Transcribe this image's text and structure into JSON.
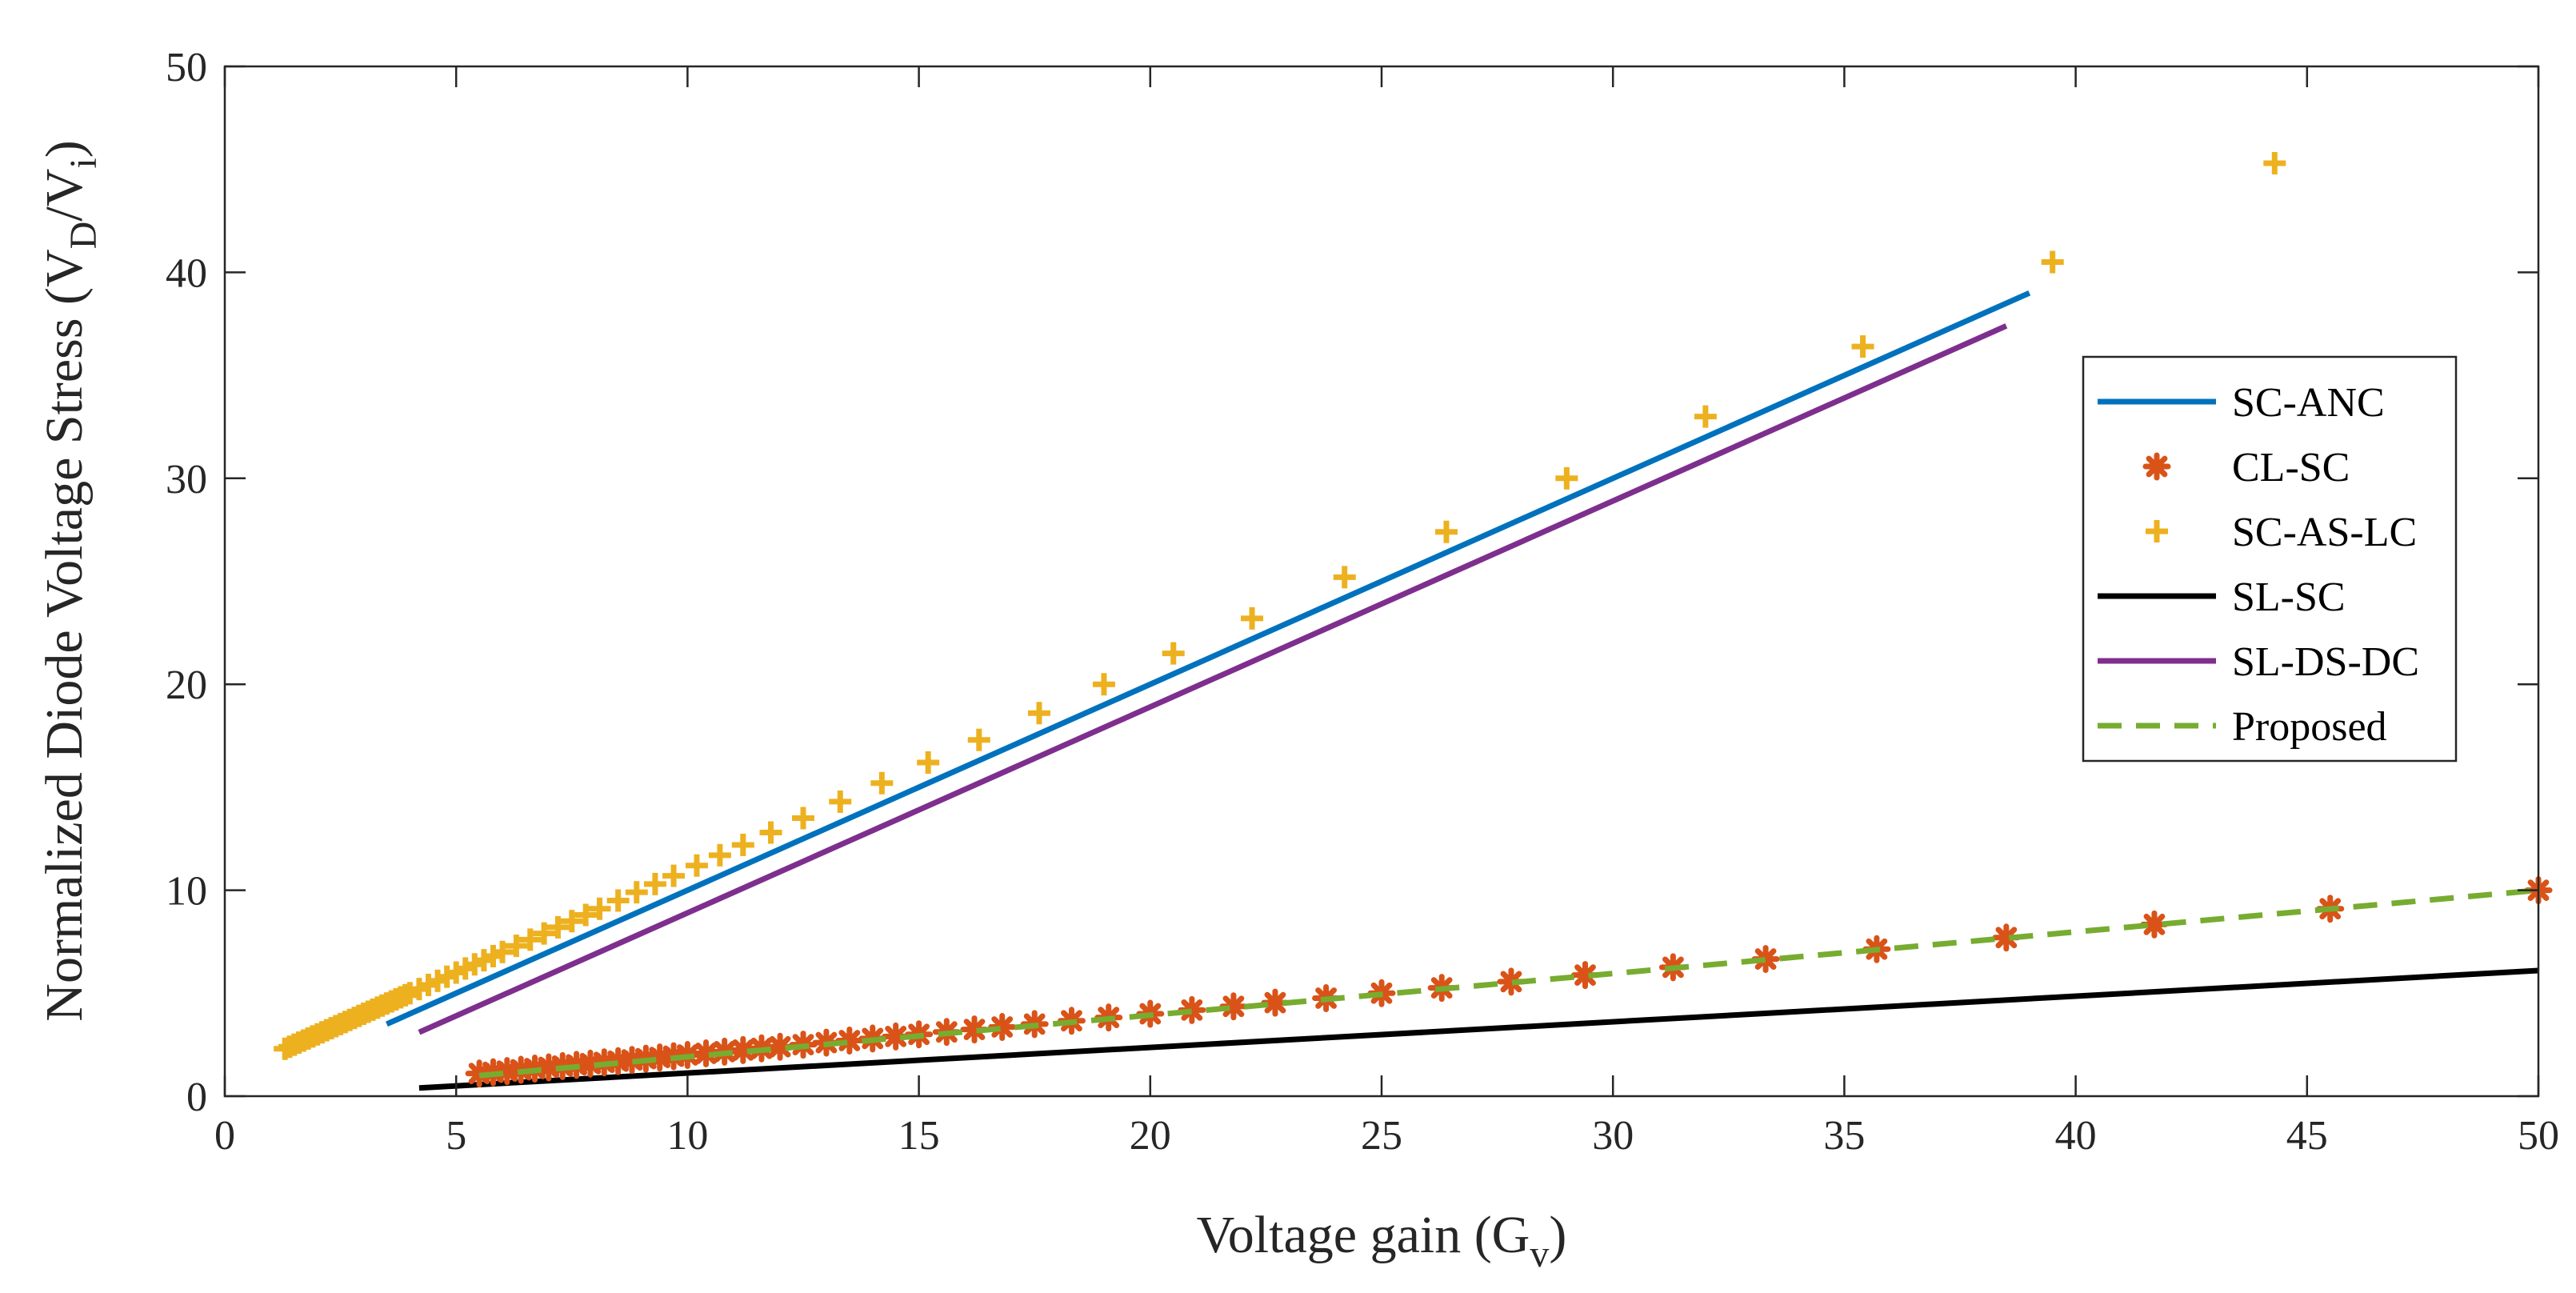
{
  "chart_data": {
    "type": "line",
    "title": "",
    "xlabel": "Voltage gain (G",
    "xlabel_sub": "v",
    "xlabel_end": ")",
    "ylabel": "Normalized Diode Voltage Stress (V",
    "ylabel_sub1": "D",
    "ylabel_mid": "/V",
    "ylabel_sub2": "i",
    "ylabel_end": ")",
    "xlim": [
      0,
      50
    ],
    "ylim": [
      0,
      50
    ],
    "xticks": [
      0,
      5,
      10,
      15,
      20,
      25,
      30,
      35,
      40,
      45,
      50
    ],
    "yticks": [
      0,
      10,
      20,
      30,
      40,
      50
    ],
    "grid": false,
    "legend_position": "right",
    "series": [
      {
        "name": "SC-ANC",
        "style": "line",
        "color": "#0072BD",
        "x": [
          3.5,
          39
        ],
        "y": [
          3.5,
          39
        ]
      },
      {
        "name": "CL-SC",
        "style": "asterisk",
        "color": "#D95319",
        "x": [
          5.5,
          5.8,
          6.1,
          6.4,
          6.7,
          7.0,
          7.3,
          7.6,
          7.9,
          8.2,
          8.5,
          8.8,
          9.1,
          9.4,
          9.7,
          10.0,
          10.4,
          10.8,
          11.2,
          11.6,
          12.0,
          12.5,
          13.0,
          13.5,
          14.0,
          14.5,
          15.0,
          15.6,
          16.2,
          16.8,
          17.5,
          18.3,
          19.1,
          20.0,
          20.9,
          21.8,
          22.7,
          23.8,
          25.0,
          26.3,
          27.8,
          29.4,
          31.3,
          33.3,
          35.7,
          38.5,
          41.7,
          45.5,
          50.0
        ],
        "y": [
          1.1,
          1.16,
          1.22,
          1.28,
          1.34,
          1.4,
          1.46,
          1.52,
          1.58,
          1.64,
          1.7,
          1.76,
          1.82,
          1.88,
          1.94,
          2.0,
          2.08,
          2.16,
          2.24,
          2.32,
          2.4,
          2.5,
          2.6,
          2.7,
          2.8,
          2.9,
          3.0,
          3.12,
          3.24,
          3.36,
          3.5,
          3.66,
          3.82,
          4.0,
          4.18,
          4.36,
          4.54,
          4.76,
          5.0,
          5.26,
          5.56,
          5.88,
          6.26,
          6.66,
          7.14,
          7.7,
          8.34,
          9.1,
          10.0
        ]
      },
      {
        "name": "SC-AS-LC",
        "style": "plus",
        "color": "#EDB120",
        "x": [
          1.3,
          1.4,
          1.5,
          1.6,
          1.7,
          1.8,
          1.9,
          2.0,
          2.1,
          2.2,
          2.3,
          2.4,
          2.5,
          2.6,
          2.7,
          2.8,
          2.9,
          3.0,
          3.1,
          3.2,
          3.3,
          3.4,
          3.5,
          3.6,
          3.7,
          3.8,
          3.9,
          4.0,
          4.2,
          4.4,
          4.6,
          4.8,
          5.0,
          5.2,
          5.4,
          5.6,
          5.8,
          6.0,
          6.3,
          6.6,
          6.9,
          7.2,
          7.5,
          7.8,
          8.1,
          8.5,
          8.9,
          9.3,
          9.7,
          10.2,
          10.7,
          11.2,
          11.8,
          12.5,
          13.3,
          14.2,
          15.2,
          16.3,
          17.6,
          19.0,
          20.5,
          22.2,
          24.2,
          26.4,
          29.0,
          32.0,
          35.4,
          39.5,
          44.3
        ],
        "y": [
          2.3,
          2.4,
          2.5,
          2.6,
          2.7,
          2.8,
          2.9,
          3.0,
          3.1,
          3.2,
          3.3,
          3.4,
          3.5,
          3.6,
          3.7,
          3.8,
          3.9,
          4.0,
          4.1,
          4.2,
          4.3,
          4.4,
          4.5,
          4.6,
          4.7,
          4.8,
          4.9,
          5.0,
          5.2,
          5.4,
          5.6,
          5.8,
          6.0,
          6.2,
          6.4,
          6.6,
          6.8,
          7.0,
          7.3,
          7.6,
          7.9,
          8.2,
          8.5,
          8.8,
          9.1,
          9.5,
          9.9,
          10.3,
          10.7,
          11.2,
          11.7,
          12.2,
          12.8,
          13.5,
          14.3,
          15.2,
          16.2,
          17.3,
          18.6,
          20.0,
          21.5,
          23.2,
          25.2,
          27.4,
          30.0,
          33.0,
          36.4,
          40.5,
          45.3
        ]
      },
      {
        "name": "SL-SC",
        "style": "line",
        "color": "#000000",
        "x": [
          4.2,
          50
        ],
        "y": [
          0.4,
          6.1
        ]
      },
      {
        "name": "SL-DS-DC",
        "style": "line",
        "color": "#7E2F8E",
        "x": [
          4.2,
          38.5
        ],
        "y": [
          3.1,
          37.4
        ]
      },
      {
        "name": "Proposed",
        "style": "dashed",
        "color": "#77AC30",
        "x": [
          5.5,
          50
        ],
        "y": [
          1.0,
          10.0
        ]
      }
    ]
  }
}
